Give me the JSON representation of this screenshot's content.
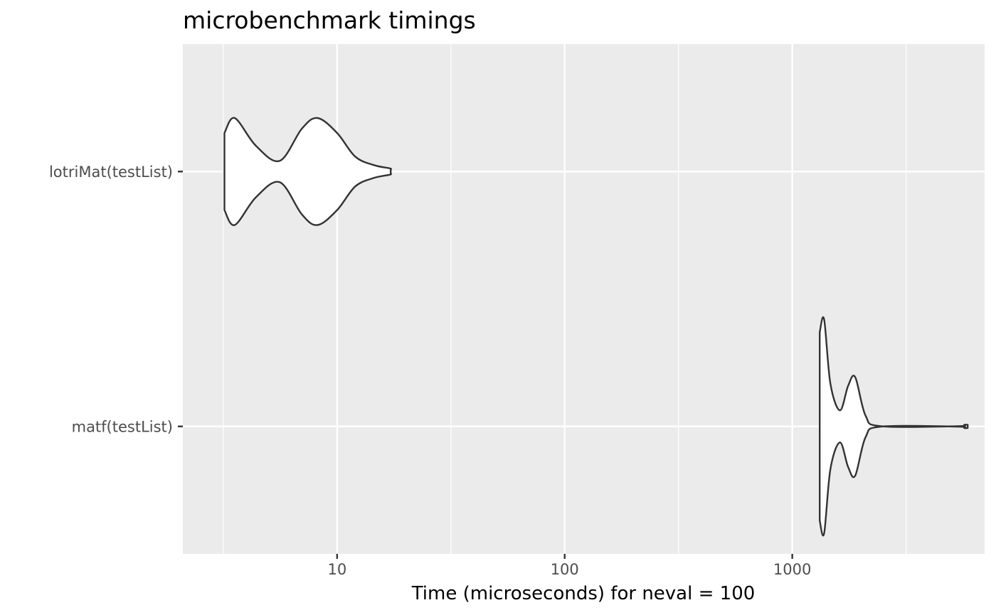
{
  "chart_data": {
    "type": "violin",
    "orientation": "horizontal",
    "title": "microbenchmark timings",
    "xlabel": "Time (microseconds) for neval = 100",
    "ylabel": "",
    "x_scale": "log10",
    "xlim": [
      2.1,
      7000
    ],
    "x_major_ticks": [
      10,
      100,
      1000
    ],
    "x_tick_labels": [
      "10",
      "100",
      "1000"
    ],
    "x_minor_ticks": [
      3.1623,
      31.623,
      316.23,
      3162.3
    ],
    "categories": [
      "lotriMat(testList)",
      "matf(testList)"
    ],
    "grid": true,
    "legend": "none",
    "colors": {
      "panel": "#ebebeb",
      "gridline": "#ffffff",
      "violin_fill": "#ffffff",
      "violin_stroke": "#333333"
    },
    "series": [
      {
        "category": "lotriMat(testList)",
        "range": [
          3.2,
          17.2
        ],
        "density": [
          [
            3.2,
            0.36
          ],
          [
            3.55,
            0.5
          ],
          [
            4.4,
            0.24
          ],
          [
            5.6,
            0.1
          ],
          [
            7.0,
            0.4
          ],
          [
            8.2,
            0.5
          ],
          [
            10.0,
            0.36
          ],
          [
            12.0,
            0.14
          ],
          [
            14.5,
            0.06
          ],
          [
            17.0,
            0.03
          ],
          [
            17.2,
            0.02
          ]
        ]
      },
      {
        "category": "matf(testList)",
        "range": [
          1320,
          5900
        ],
        "density": [
          [
            1320,
            0.88
          ],
          [
            1380,
            1.0
          ],
          [
            1470,
            0.4
          ],
          [
            1620,
            0.15
          ],
          [
            1760,
            0.38
          ],
          [
            1890,
            0.46
          ],
          [
            2100,
            0.1
          ],
          [
            2450,
            0.002
          ],
          [
            5300,
            0.002
          ],
          [
            5700,
            0.015
          ],
          [
            5900,
            0.015
          ]
        ]
      }
    ]
  }
}
